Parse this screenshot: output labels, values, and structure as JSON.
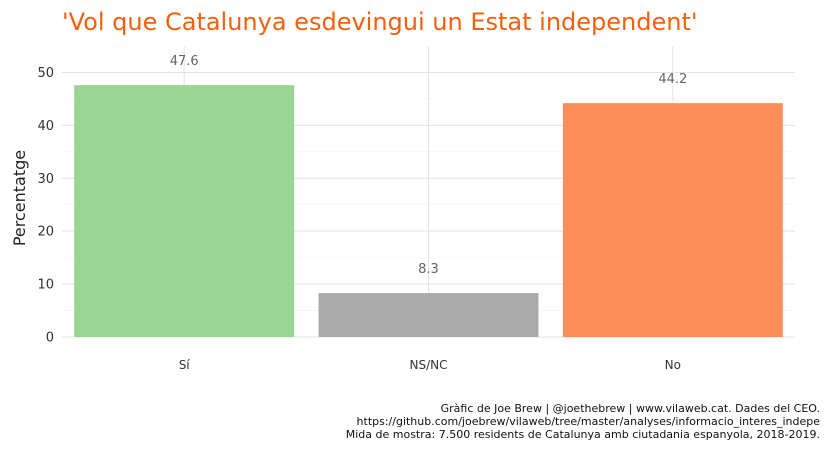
{
  "chart_data": {
    "type": "bar",
    "title": "'Vol que Catalunya esdevingui un Estat independent'",
    "xlabel": "",
    "ylabel": "Percentatge",
    "categories": [
      "Sí",
      "NS/NC",
      "No"
    ],
    "values": [
      47.6,
      8.3,
      44.2
    ],
    "data_labels": [
      "47.6",
      "8.3",
      "44.2"
    ],
    "colors": [
      "#9ad593",
      "#aaaaaa",
      "#fc8e59"
    ],
    "ylim": [
      0,
      55
    ],
    "yticks": [
      0,
      10,
      20,
      30,
      40,
      50
    ],
    "grid": true,
    "legend": "none",
    "caption": [
      "Gràfic de Joe Brew | @joethebrew | www.vilaweb.cat. Dades del CEO.",
      "https://github.com/joebrew/vilaweb/tree/master/analyses/informacio_interes_indepe",
      "Mida de mostra: 7.500 residents de Catalunya amb ciutadania espanyola, 2018-2019."
    ]
  }
}
